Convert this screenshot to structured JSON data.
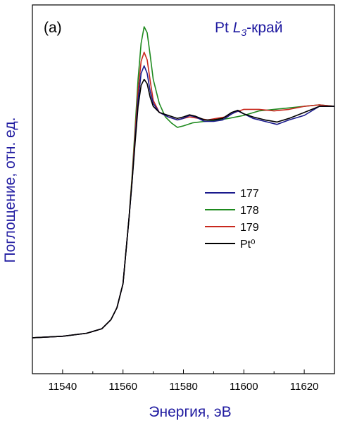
{
  "chart_data": {
    "type": "line",
    "panel_label": "(a)",
    "annotation": {
      "prefix": "Pt ",
      "italic": "L",
      "sub": "3",
      "suffix": "-край"
    },
    "xlabel": "Энергия, эВ",
    "ylabel": "Поглощение, отн. ед.",
    "xlim": [
      11530,
      11630
    ],
    "ylim": [
      0,
      1
    ],
    "x_ticks": [
      11540,
      11560,
      11580,
      11600,
      11620
    ],
    "x_tick_labels": [
      "11540",
      "11560",
      "11580",
      "11600",
      "11620"
    ],
    "y_tick_labels": [],
    "legend_placement": "center-right",
    "series": [
      {
        "name": "177",
        "color": "#1a1a8c",
        "points": [
          [
            11530,
            0.04
          ],
          [
            11540,
            0.045
          ],
          [
            11548,
            0.055
          ],
          [
            11553,
            0.07
          ],
          [
            11556,
            0.1
          ],
          [
            11558,
            0.14
          ],
          [
            11560,
            0.22
          ],
          [
            11562,
            0.44
          ],
          [
            11563,
            0.56
          ],
          [
            11564,
            0.7
          ],
          [
            11565,
            0.83
          ],
          [
            11566,
            0.92
          ],
          [
            11567,
            0.945
          ],
          [
            11568,
            0.92
          ],
          [
            11569,
            0.86
          ],
          [
            11570,
            0.82
          ],
          [
            11572,
            0.79
          ],
          [
            11575,
            0.775
          ],
          [
            11578,
            0.765
          ],
          [
            11580,
            0.77
          ],
          [
            11582,
            0.78
          ],
          [
            11584,
            0.775
          ],
          [
            11587,
            0.76
          ],
          [
            11590,
            0.76
          ],
          [
            11593,
            0.765
          ],
          [
            11596,
            0.785
          ],
          [
            11598,
            0.795
          ],
          [
            11600,
            0.785
          ],
          [
            11603,
            0.77
          ],
          [
            11607,
            0.76
          ],
          [
            11611,
            0.75
          ],
          [
            11615,
            0.765
          ],
          [
            11620,
            0.78
          ],
          [
            11625,
            0.81
          ],
          [
            11630,
            0.81
          ]
        ]
      },
      {
        "name": "178",
        "color": "#1e8a1e",
        "points": [
          [
            11530,
            0.04
          ],
          [
            11540,
            0.045
          ],
          [
            11548,
            0.055
          ],
          [
            11553,
            0.07
          ],
          [
            11556,
            0.1
          ],
          [
            11558,
            0.14
          ],
          [
            11560,
            0.22
          ],
          [
            11562,
            0.44
          ],
          [
            11563,
            0.58
          ],
          [
            11564,
            0.74
          ],
          [
            11565,
            0.9
          ],
          [
            11566,
            1.02
          ],
          [
            11567,
            1.075
          ],
          [
            11568,
            1.055
          ],
          [
            11569,
            0.98
          ],
          [
            11570,
            0.9
          ],
          [
            11572,
            0.82
          ],
          [
            11574,
            0.775
          ],
          [
            11576,
            0.755
          ],
          [
            11578,
            0.74
          ],
          [
            11580,
            0.745
          ],
          [
            11583,
            0.755
          ],
          [
            11587,
            0.76
          ],
          [
            11590,
            0.762
          ],
          [
            11595,
            0.77
          ],
          [
            11600,
            0.78
          ],
          [
            11605,
            0.795
          ],
          [
            11610,
            0.8
          ],
          [
            11615,
            0.805
          ],
          [
            11620,
            0.81
          ],
          [
            11625,
            0.815
          ],
          [
            11630,
            0.81
          ]
        ]
      },
      {
        "name": "179",
        "color": "#c8281e",
        "points": [
          [
            11530,
            0.04
          ],
          [
            11540,
            0.045
          ],
          [
            11548,
            0.055
          ],
          [
            11553,
            0.07
          ],
          [
            11556,
            0.1
          ],
          [
            11558,
            0.14
          ],
          [
            11560,
            0.22
          ],
          [
            11562,
            0.44
          ],
          [
            11563,
            0.57
          ],
          [
            11564,
            0.72
          ],
          [
            11565,
            0.86
          ],
          [
            11566,
            0.96
          ],
          [
            11567,
            0.99
          ],
          [
            11568,
            0.965
          ],
          [
            11569,
            0.895
          ],
          [
            11570,
            0.83
          ],
          [
            11572,
            0.79
          ],
          [
            11575,
            0.775
          ],
          [
            11578,
            0.765
          ],
          [
            11580,
            0.77
          ],
          [
            11582,
            0.775
          ],
          [
            11585,
            0.77
          ],
          [
            11588,
            0.765
          ],
          [
            11591,
            0.77
          ],
          [
            11594,
            0.775
          ],
          [
            11597,
            0.79
          ],
          [
            11600,
            0.8
          ],
          [
            11605,
            0.8
          ],
          [
            11610,
            0.795
          ],
          [
            11615,
            0.8
          ],
          [
            11620,
            0.81
          ],
          [
            11625,
            0.815
          ],
          [
            11630,
            0.81
          ]
        ]
      },
      {
        "name": "Pt⁰",
        "color": "#000000",
        "points": [
          [
            11530,
            0.04
          ],
          [
            11540,
            0.045
          ],
          [
            11548,
            0.055
          ],
          [
            11553,
            0.07
          ],
          [
            11556,
            0.1
          ],
          [
            11558,
            0.14
          ],
          [
            11560,
            0.22
          ],
          [
            11562,
            0.44
          ],
          [
            11563,
            0.56
          ],
          [
            11564,
            0.69
          ],
          [
            11565,
            0.81
          ],
          [
            11566,
            0.88
          ],
          [
            11567,
            0.9
          ],
          [
            11568,
            0.885
          ],
          [
            11569,
            0.84
          ],
          [
            11570,
            0.81
          ],
          [
            11572,
            0.79
          ],
          [
            11575,
            0.78
          ],
          [
            11578,
            0.77
          ],
          [
            11580,
            0.775
          ],
          [
            11582,
            0.782
          ],
          [
            11584,
            0.777
          ],
          [
            11587,
            0.765
          ],
          [
            11590,
            0.765
          ],
          [
            11593,
            0.77
          ],
          [
            11596,
            0.79
          ],
          [
            11598,
            0.797
          ],
          [
            11600,
            0.785
          ],
          [
            11603,
            0.775
          ],
          [
            11607,
            0.765
          ],
          [
            11611,
            0.758
          ],
          [
            11615,
            0.77
          ],
          [
            11620,
            0.79
          ],
          [
            11625,
            0.81
          ],
          [
            11630,
            0.81
          ]
        ]
      }
    ]
  }
}
